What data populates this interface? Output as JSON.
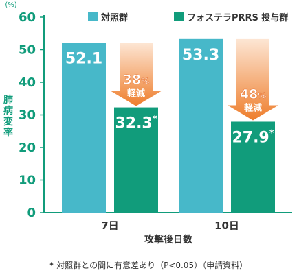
{
  "chart_data": {
    "type": "bar",
    "categories": [
      "7日",
      "10日"
    ],
    "xlabel": "攻撃後日数",
    "ylabel": "肺病変率",
    "y_unit": "(%)",
    "ylim": [
      0,
      60
    ],
    "yticks": [
      0,
      10,
      20,
      30,
      40,
      50,
      60
    ],
    "grid": false,
    "legend_position": "top",
    "series": [
      {
        "name": "対照群",
        "color": "#47b8c9",
        "values": [
          52.1,
          53.3
        ],
        "value_labels": [
          "52.1",
          "53.3"
        ]
      },
      {
        "name": "フォステラPRRS 投与群",
        "color": "#119c7b",
        "values": [
          32.3,
          27.9
        ],
        "value_labels": [
          "32.3",
          "27.9"
        ],
        "significance_mark": "*"
      }
    ],
    "annotations": [
      {
        "category": "7日",
        "percent": "38",
        "percent_sign": "%",
        "text": "軽減"
      },
      {
        "category": "10日",
        "percent": "48",
        "percent_sign": "%",
        "text": "軽減"
      }
    ],
    "arrow_colors": {
      "top": "#fde6d4",
      "bottom": "#ee7e2d"
    },
    "axis_color": "#119c7b",
    "footnote": {
      "mark": "*",
      "text": "対照群との間に有意差あり（P<0.05）（申請資料）"
    }
  }
}
